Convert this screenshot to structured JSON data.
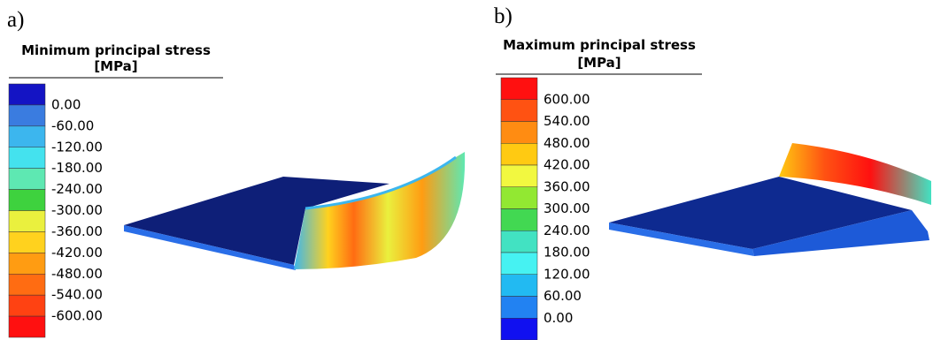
{
  "panels": [
    {
      "label": "a)",
      "title": "Minimum principal stress",
      "unit": "[MPa]",
      "legend_labels": [
        "0.00",
        "-60.00",
        "-120.00",
        "-180.00",
        "-240.00",
        "-300.00",
        "-360.00",
        "-420.00",
        "-480.00",
        "-540.00",
        "-600.00"
      ],
      "colors": [
        "#1414c4",
        "#3a7ce0",
        "#3cb6ee",
        "#44e2ee",
        "#5ee8b2",
        "#3ed23e",
        "#eaf03e",
        "#ffd21e",
        "#ff9c12",
        "#ff6c12",
        "#ff4212",
        "#ff1010"
      ]
    },
    {
      "label": "b)",
      "title": "Maximum principal stress",
      "unit": "[MPa]",
      "legend_labels": [
        "600.00",
        "540.00",
        "480.00",
        "420.00",
        "360.00",
        "300.00",
        "240.00",
        "180.00",
        "120.00",
        "60.00",
        "0.00"
      ],
      "colors": [
        "#ff1010",
        "#ff5212",
        "#ff8c12",
        "#ffca12",
        "#f2f840",
        "#92e832",
        "#42d852",
        "#42e2c2",
        "#46f2f2",
        "#22baf2",
        "#2282f2",
        "#1010f0"
      ]
    }
  ]
}
